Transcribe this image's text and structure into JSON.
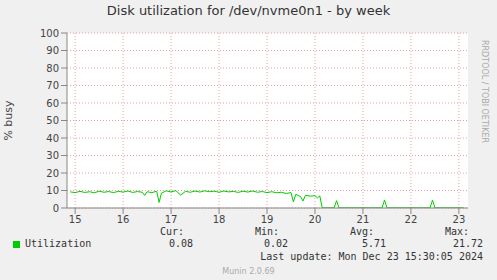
{
  "chart_data": {
    "type": "line",
    "title": "Disk utilization for /dev/nvme0n1 - by week",
    "y_label": "% busy",
    "side_text": "RRDTOOL / TOBI OETIKER",
    "x": [
      14.9,
      15.0,
      15.1,
      15.2,
      15.3,
      15.4,
      15.5,
      15.6,
      15.7,
      15.8,
      15.9,
      16.0,
      16.1,
      16.2,
      16.3,
      16.4,
      16.45,
      16.5,
      16.6,
      16.7,
      16.75,
      16.8,
      16.9,
      17.0,
      17.1,
      17.2,
      17.3,
      17.4,
      17.5,
      17.6,
      17.7,
      17.8,
      17.9,
      18.0,
      18.1,
      18.2,
      18.3,
      18.4,
      18.5,
      18.6,
      18.7,
      18.8,
      18.9,
      19.0,
      19.1,
      19.2,
      19.3,
      19.4,
      19.5,
      19.55,
      19.6,
      19.7,
      19.75,
      19.8,
      19.9,
      20.0,
      20.05,
      20.1,
      20.15,
      20.2,
      20.3,
      20.4,
      20.45,
      20.5,
      20.6,
      20.8,
      21.0,
      21.2,
      21.4,
      21.45,
      21.5,
      21.6,
      21.8,
      22.0,
      22.2,
      22.4,
      22.45,
      22.5,
      22.6,
      22.8,
      23.0,
      23.1
    ],
    "series": [
      {
        "name": "Utilization",
        "color": "#00cc00",
        "values": [
          9.2,
          8.8,
          9.5,
          8.9,
          9.3,
          8.7,
          9.6,
          9.0,
          9.4,
          8.8,
          9.5,
          9.1,
          9.7,
          8.9,
          9.4,
          9.0,
          7.2,
          9.3,
          8.8,
          9.6,
          3.2,
          8.5,
          9.8,
          9.2,
          9.9,
          7.4,
          9.5,
          9.0,
          9.7,
          9.1,
          9.8,
          9.3,
          9.6,
          9.0,
          9.7,
          9.2,
          9.5,
          8.9,
          9.6,
          9.1,
          9.7,
          9.0,
          9.4,
          8.8,
          9.3,
          8.7,
          9.0,
          8.3,
          8.8,
          3.5,
          7.8,
          6.5,
          4.0,
          7.2,
          6.8,
          7.0,
          5.8,
          6.9,
          0.2,
          0.1,
          0.1,
          0.1,
          4.2,
          0.1,
          0.1,
          0.1,
          0.1,
          0.1,
          0.1,
          4.6,
          0.1,
          0.1,
          0.1,
          0.1,
          0.1,
          0.1,
          4.5,
          0.1,
          0.1,
          0.1,
          0.1,
          0.08
        ],
        "stats": [
          0.08,
          0.02,
          5.71,
          21.72
        ]
      }
    ],
    "stat_labels": [
      "Cur:",
      "Min:",
      "Avg:",
      "Max:"
    ],
    "xlim": [
      14.83,
      23.19
    ],
    "xticks": [
      15,
      16,
      17,
      18,
      19,
      20,
      21,
      22,
      23
    ],
    "ylim": [
      0,
      100
    ],
    "yticks": [
      0,
      10,
      20,
      30,
      40,
      50,
      60,
      70,
      80,
      90,
      100
    ],
    "grid": true,
    "footer": "Last update: Mon Dec 23 15:30:05 2024",
    "credit": "Munin 2.0.69"
  }
}
